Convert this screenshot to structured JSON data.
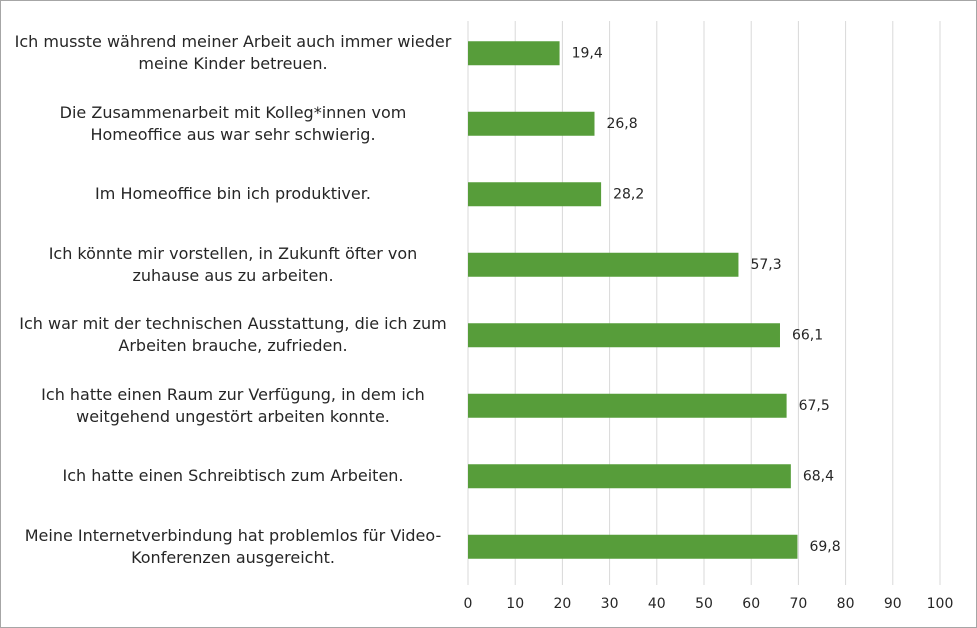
{
  "chart_data": {
    "type": "hbar",
    "categories": [
      "Ich musste während meiner Arbeit auch immer wieder meine Kinder betreuen.",
      "Die Zusammenarbeit mit Kolleg*innen vom Homeoffice aus war sehr schwierig.",
      "Im Homeoffice bin ich produktiver.",
      "Ich könnte mir vorstellen, in Zukunft öfter von zuhause aus zu arbeiten.",
      "Ich war mit der technischen Ausstattung, die ich zum Arbeiten brauche, zufrieden.",
      "Ich hatte einen Raum zur Verfügung, in dem ich weitgehend ungestört arbeiten konnte.",
      "Ich hatte einen Schreibtisch zum Arbeiten.",
      "Meine Internetverbindung hat problemlos für Video-Konferenzen ausgereicht."
    ],
    "values": [
      19.4,
      26.8,
      28.2,
      57.3,
      66.1,
      67.5,
      68.4,
      69.8
    ],
    "value_labels": [
      "19,4",
      "26,8",
      "28,2",
      "57,3",
      "66,1",
      "67,5",
      "68,4",
      "69,8"
    ],
    "color": "#579d3a",
    "xlim": [
      0,
      100
    ],
    "xticks": [
      0,
      10,
      20,
      30,
      40,
      50,
      60,
      70,
      80,
      90,
      100
    ],
    "grid": true
  }
}
